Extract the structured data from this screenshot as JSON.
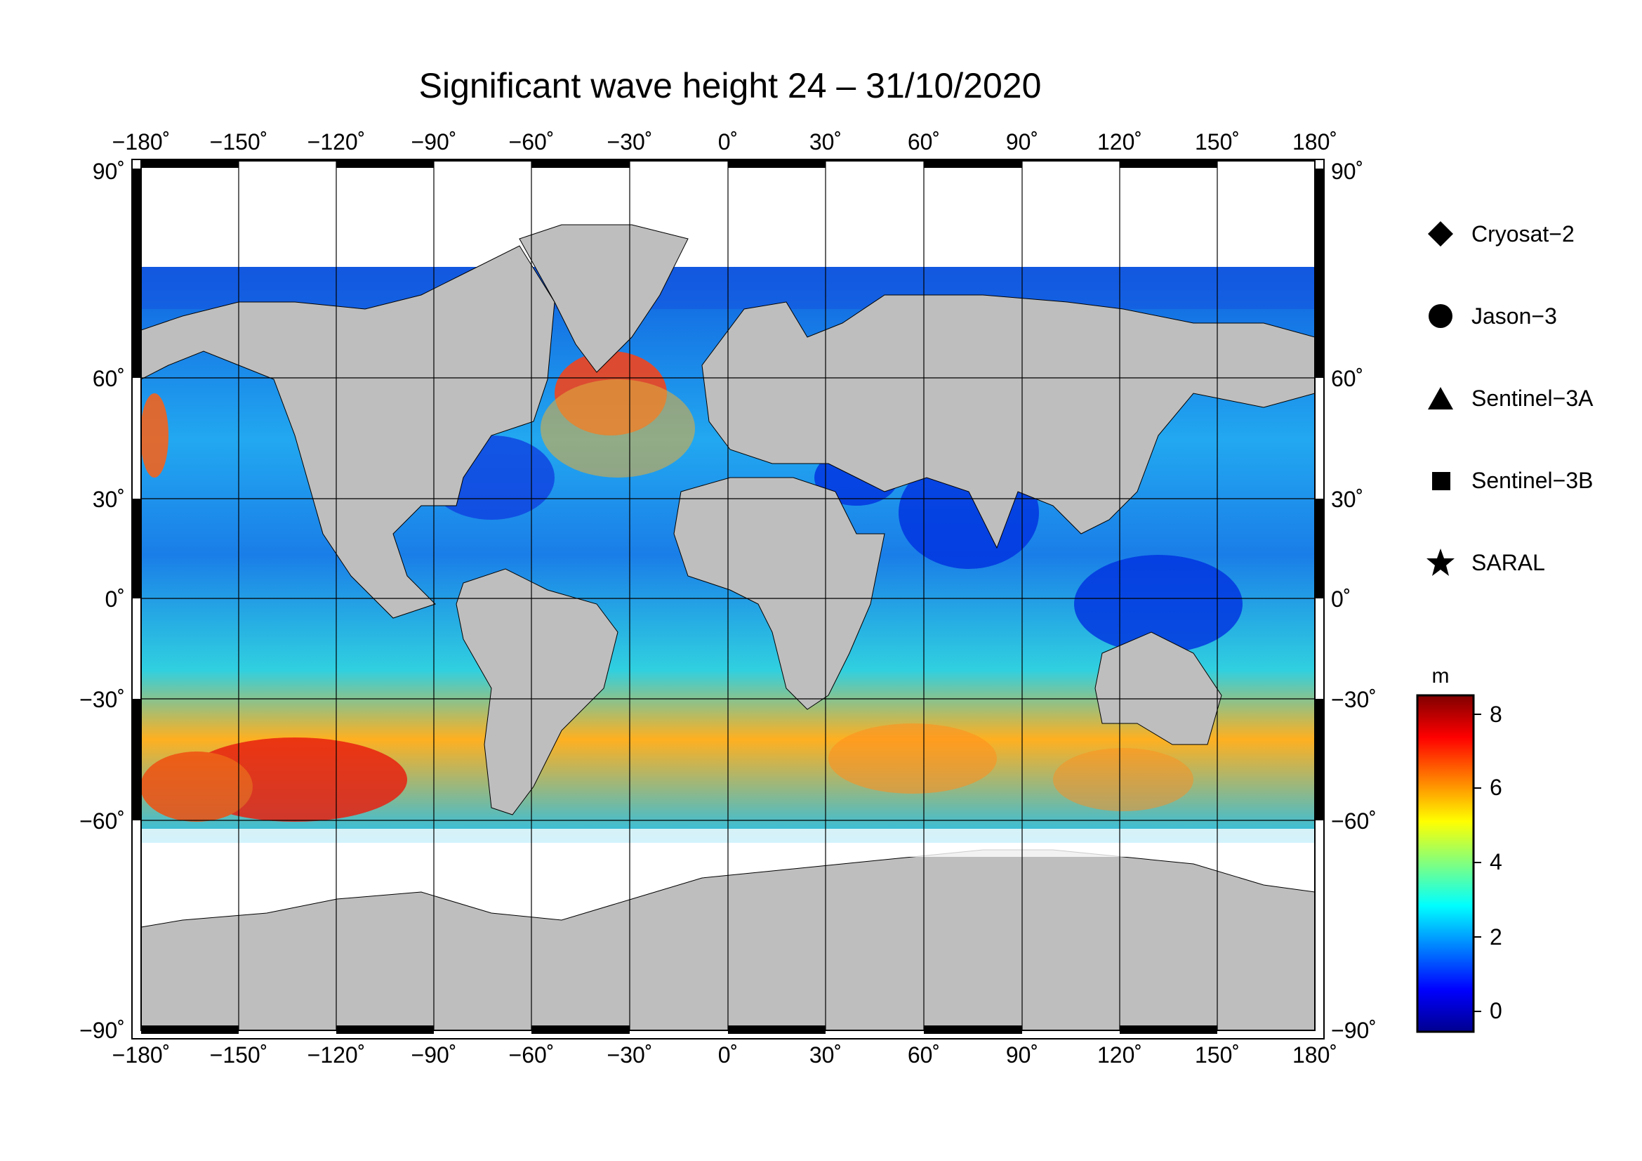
{
  "title": "Significant wave height 24 – 31/10/2020",
  "lon_ticks": [
    "−180˚",
    "−150˚",
    "−120˚",
    "−90˚",
    "−60˚",
    "−30˚",
    "0˚",
    "30˚",
    "60˚",
    "90˚",
    "120˚",
    "150˚",
    "180˚"
  ],
  "lat_ticks_left": [
    "90˚",
    "60˚",
    "30˚",
    "0˚",
    "−30˚",
    "−60˚",
    "−90˚"
  ],
  "lat_ticks_right": [
    "90˚",
    "60˚",
    "30˚",
    "0˚",
    "−30˚",
    "−60˚",
    "−90˚"
  ],
  "legend": [
    {
      "label": "Cryosat−2",
      "icon": "diamond-icon"
    },
    {
      "label": "Jason−3",
      "icon": "circle-icon"
    },
    {
      "label": "Sentinel−3A",
      "icon": "triangle-icon"
    },
    {
      "label": "Sentinel−3B",
      "icon": "square-icon"
    },
    {
      "label": "SARAL",
      "icon": "star-icon"
    }
  ],
  "colorbar": {
    "unit": "m",
    "ticks": [
      "0",
      "2",
      "4",
      "6",
      "8"
    ],
    "colors": [
      "#00008f",
      "#0000ff",
      "#0080ff",
      "#00ffff",
      "#80ff80",
      "#ffff00",
      "#ff8000",
      "#ff0000",
      "#800000"
    ]
  },
  "colors": {
    "land": "#bebebe",
    "ice": "#ffffff",
    "ocean_low": "#0a4fd8",
    "ocean_mid": "#22b8f0",
    "ocean_high": "#e01010"
  }
}
